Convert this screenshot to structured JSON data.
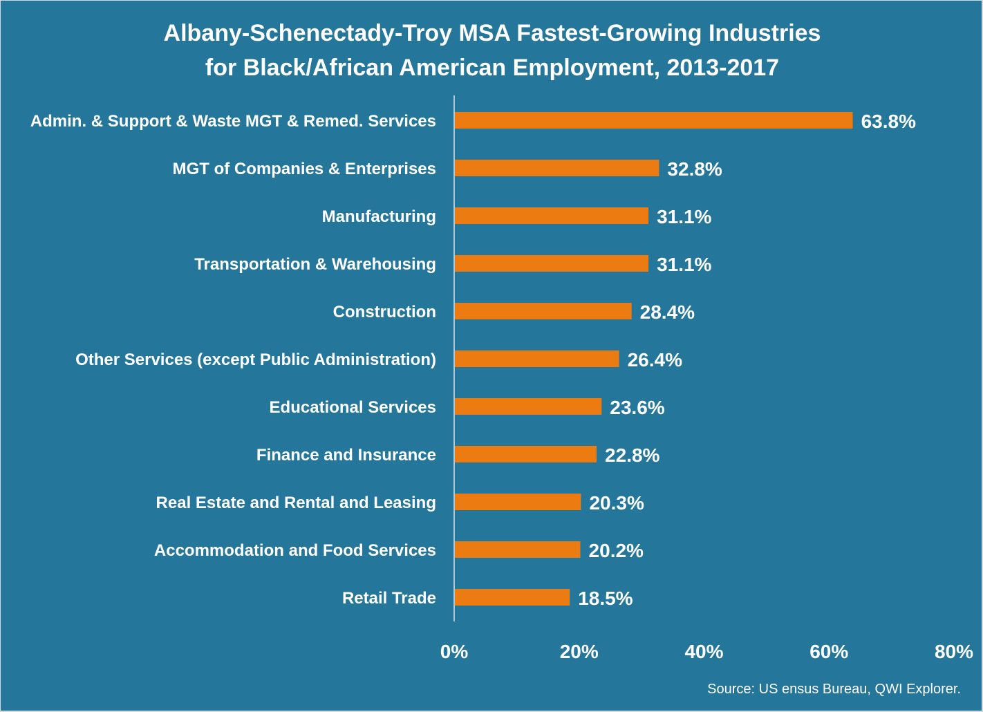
{
  "colors": {
    "background": "#24769a",
    "bar": "#ec7b12",
    "text": "#ffffff"
  },
  "chart_data": {
    "type": "bar",
    "orientation": "horizontal",
    "title": "Albany-Schenectady-Troy MSA Fastest-Growing Industries",
    "subtitle": "for Black/African American Employment, 2013-2017",
    "categories": [
      "Admin. & Support & Waste MGT & Remed. Services",
      "MGT of Companies & Enterprises",
      "Manufacturing",
      "Transportation & Warehousing",
      "Construction",
      "Other Services (except Public Administration)",
      "Educational Services",
      "Finance and Insurance",
      "Real Estate and Rental and Leasing",
      "Accommodation and Food Services",
      "Retail Trade"
    ],
    "values": [
      63.8,
      32.8,
      31.1,
      31.1,
      28.4,
      26.4,
      23.6,
      22.8,
      20.3,
      20.2,
      18.5
    ],
    "value_labels": [
      "63.8%",
      "32.8%",
      "31.1%",
      "31.1%",
      "28.4%",
      "26.4%",
      "23.6%",
      "22.8%",
      "20.3%",
      "20.2%",
      "18.5%"
    ],
    "xlim": [
      0,
      80
    ],
    "xticks": [
      0,
      20,
      40,
      60,
      80
    ],
    "xtick_labels": [
      "0%",
      "20%",
      "40%",
      "60%",
      "80%"
    ],
    "xlabel": "",
    "ylabel": "",
    "grid": false,
    "source": "Source: US ensus Bureau, QWI Explorer."
  }
}
